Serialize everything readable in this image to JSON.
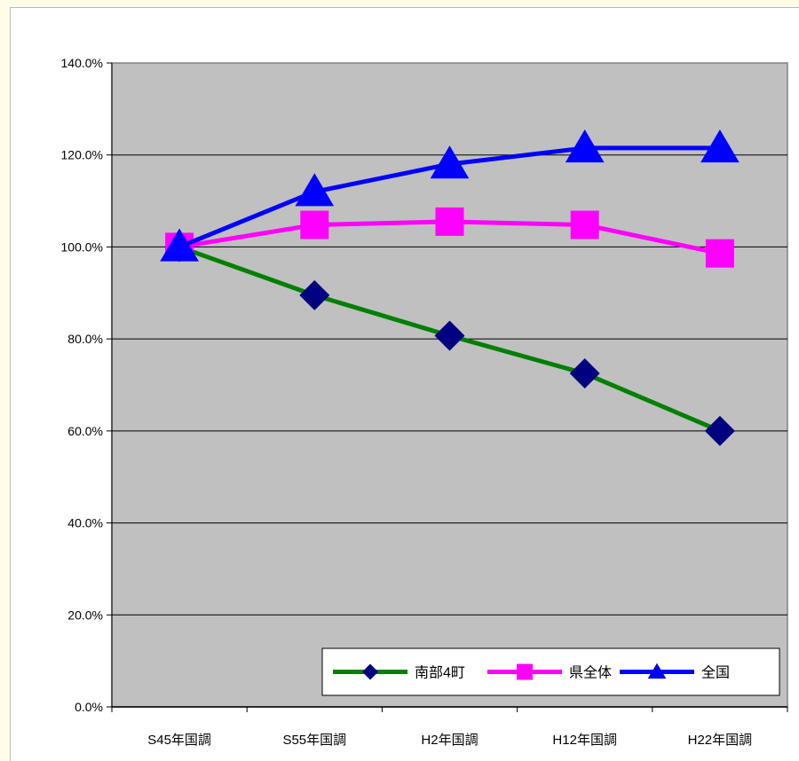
{
  "chart_data": {
    "type": "line",
    "categories": [
      "S45年国調",
      "S55年国調",
      "H2年国調",
      "H12年国調",
      "H22年国調"
    ],
    "series": [
      {
        "name": "南部4町",
        "values": [
          100.0,
          89.5,
          80.7,
          72.5,
          60.0
        ],
        "color": "#008000",
        "marker": "diamond",
        "marker_color": "#000080"
      },
      {
        "name": "県全体",
        "values": [
          100.0,
          104.8,
          105.5,
          104.8,
          98.6
        ],
        "color": "#ff00ff",
        "marker": "square",
        "marker_color": "#ff00ff"
      },
      {
        "name": "全国",
        "values": [
          100.0,
          112.0,
          118.0,
          121.5,
          121.5
        ],
        "color": "#0000ff",
        "marker": "triangle",
        "marker_color": "#0000ff"
      }
    ],
    "ylim": [
      0,
      140
    ],
    "yticks": [
      "0.0%",
      "20.0%",
      "40.0%",
      "60.0%",
      "80.0%",
      "100.0%",
      "120.0%",
      "140.0%"
    ],
    "plot_background": "#c0c0c0",
    "grid": true,
    "legend": "bottom-right"
  }
}
